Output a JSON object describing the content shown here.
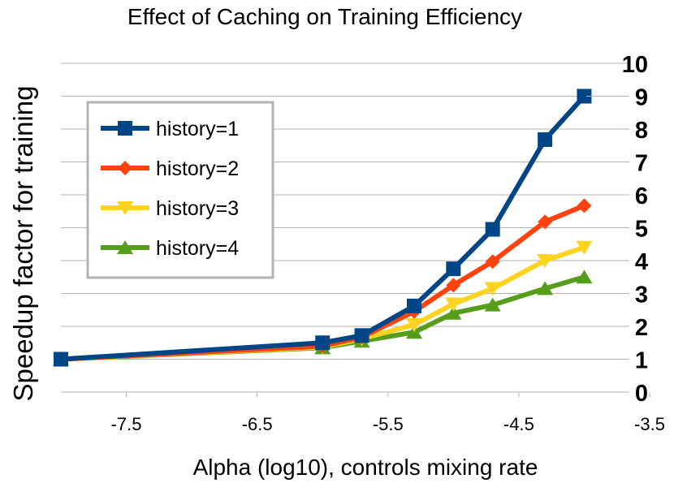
{
  "chart_data": {
    "type": "line",
    "title": "Effect of Caching on Training Efficiency",
    "xlabel": "Alpha (log10), controls mixing rate",
    "ylabel": "Speedup factor for training",
    "xlim": [
      -8.0,
      -3.5
    ],
    "ylim": [
      0,
      10
    ],
    "x_ticks": [
      "-7.5",
      "-6.5",
      "-5.5",
      "-4.5",
      "-3.5"
    ],
    "x_tick_values": [
      -7.5,
      -6.5,
      -5.5,
      -4.5,
      -3.5
    ],
    "y_ticks": [
      "0",
      "1",
      "2",
      "3",
      "4",
      "5",
      "6",
      "7",
      "8",
      "9",
      "10"
    ],
    "y_tick_values": [
      0,
      1,
      2,
      3,
      4,
      5,
      6,
      7,
      8,
      9,
      10
    ],
    "y_axis_side": "right",
    "grid": "horizontal",
    "legend_position": "top-left",
    "x": [
      -8.0,
      -6.0,
      -5.7,
      -5.3,
      -5.0,
      -4.7,
      -4.3,
      -4.0
    ],
    "series": [
      {
        "name": "history=1",
        "color": "#004586",
        "marker": "square",
        "values": [
          1.0,
          1.5,
          1.72,
          2.62,
          3.75,
          4.95,
          7.68,
          9.0
        ]
      },
      {
        "name": "history=2",
        "color": "#ff420e",
        "marker": "diamond",
        "values": [
          1.0,
          1.4,
          1.67,
          2.45,
          3.25,
          3.97,
          5.18,
          5.67
        ]
      },
      {
        "name": "history=3",
        "color": "#ffd320",
        "marker": "triangle-down",
        "values": [
          1.0,
          1.37,
          1.62,
          2.05,
          2.68,
          3.15,
          4.0,
          4.4
        ]
      },
      {
        "name": "history=4",
        "color": "#579d1c",
        "marker": "triangle-up",
        "values": [
          1.0,
          1.35,
          1.55,
          1.82,
          2.4,
          2.65,
          3.15,
          3.5
        ]
      }
    ]
  }
}
